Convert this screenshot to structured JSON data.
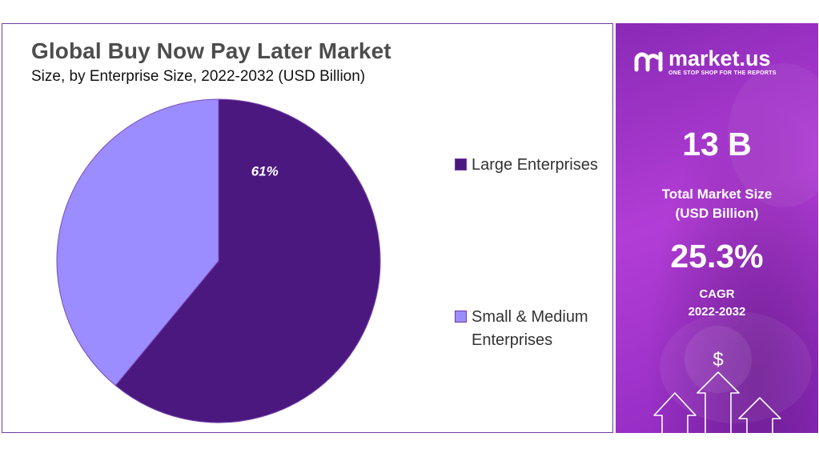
{
  "header": {
    "title": "Global Buy Now Pay Later Market",
    "subtitle": "Size, by Enterprise Size, 2022-2032 (USD Billion)"
  },
  "chart_data": {
    "type": "pie",
    "title": "Global Buy Now Pay Later Market",
    "subtitle": "Size, by Enterprise Size, 2022-2032 (USD Billion)",
    "categories": [
      "Large Enterprises",
      "Small & Medium Enterprises"
    ],
    "values": [
      61,
      39
    ],
    "unit": "%",
    "data_labels": [
      "61%",
      ""
    ],
    "colors": [
      "#4b1880",
      "#9b8cff"
    ],
    "legend_position": "right"
  },
  "legend": {
    "items": [
      {
        "label": "Large Enterprises",
        "color": "#4b1880"
      },
      {
        "label": "Small & Medium Enterprises",
        "color": "#9b8cff"
      }
    ]
  },
  "sidebar": {
    "brand_name": "market.us",
    "brand_tagline": "ONE STOP SHOP FOR THE REPORTS",
    "market_size_value": "13 B",
    "market_size_label_line1": "Total Market Size",
    "market_size_label_line2": "(USD Billion)",
    "cagr_value": "25.3%",
    "cagr_label": "CAGR",
    "cagr_period": "2022-2032",
    "dollar_symbol": "$"
  },
  "colors": {
    "accent": "#6f3aa0",
    "large_enterprises": "#4b1880",
    "small_medium": "#9b8cff",
    "side_panel": "#a535cf"
  }
}
